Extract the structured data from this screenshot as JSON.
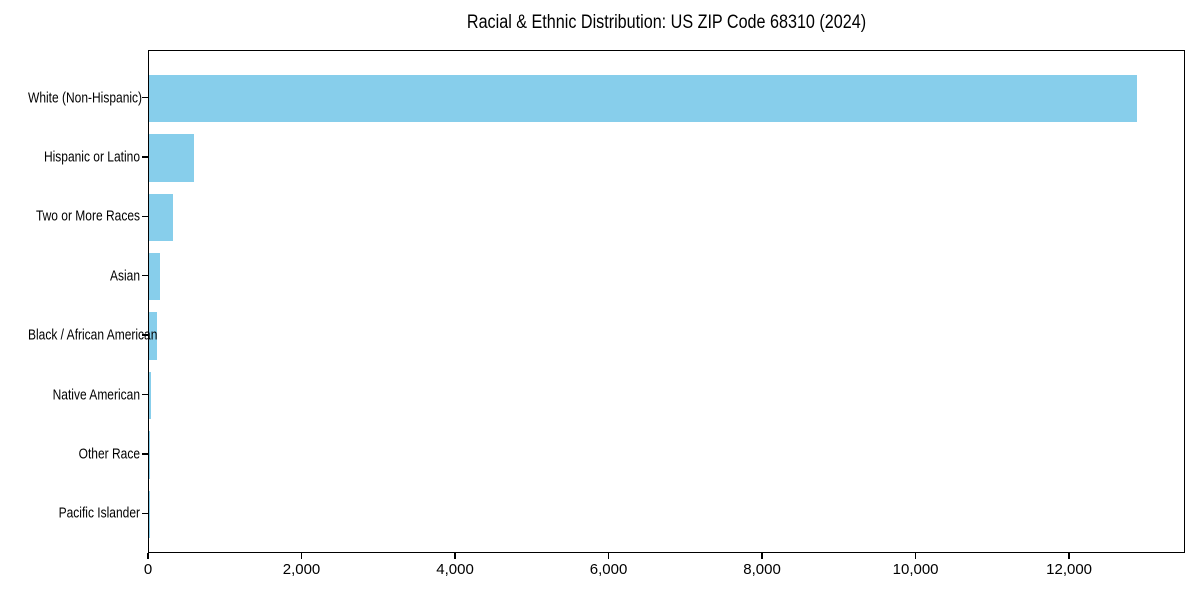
{
  "figure": {
    "title": "Racial & Ethnic Distribution: US ZIP Code 68310 (2024)"
  },
  "chart_data": {
    "type": "bar",
    "orientation": "horizontal",
    "title": "Racial & Ethnic Distribution: US ZIP Code 68310 (2024)",
    "xlabel": "",
    "ylabel": "",
    "categories": [
      "White (Non-Hispanic)",
      "Hispanic or Latino",
      "Two or More Races",
      "Asian",
      "Black / African American",
      "Native American",
      "Other Race",
      "Pacific Islander"
    ],
    "values": [
      12870,
      590,
      310,
      140,
      100,
      25,
      15,
      5
    ],
    "x_ticks": [
      0,
      2000,
      4000,
      6000,
      8000,
      10000,
      12000
    ],
    "x_tick_labels": [
      "0",
      "2,000",
      "4,000",
      "6,000",
      "8,000",
      "10,000",
      "12,000"
    ],
    "xlim": [
      0,
      13510
    ],
    "bar_color": "#87ceeb",
    "background_color": "#ffffff",
    "text_color": "#000000",
    "grid": false,
    "legend": "none"
  }
}
